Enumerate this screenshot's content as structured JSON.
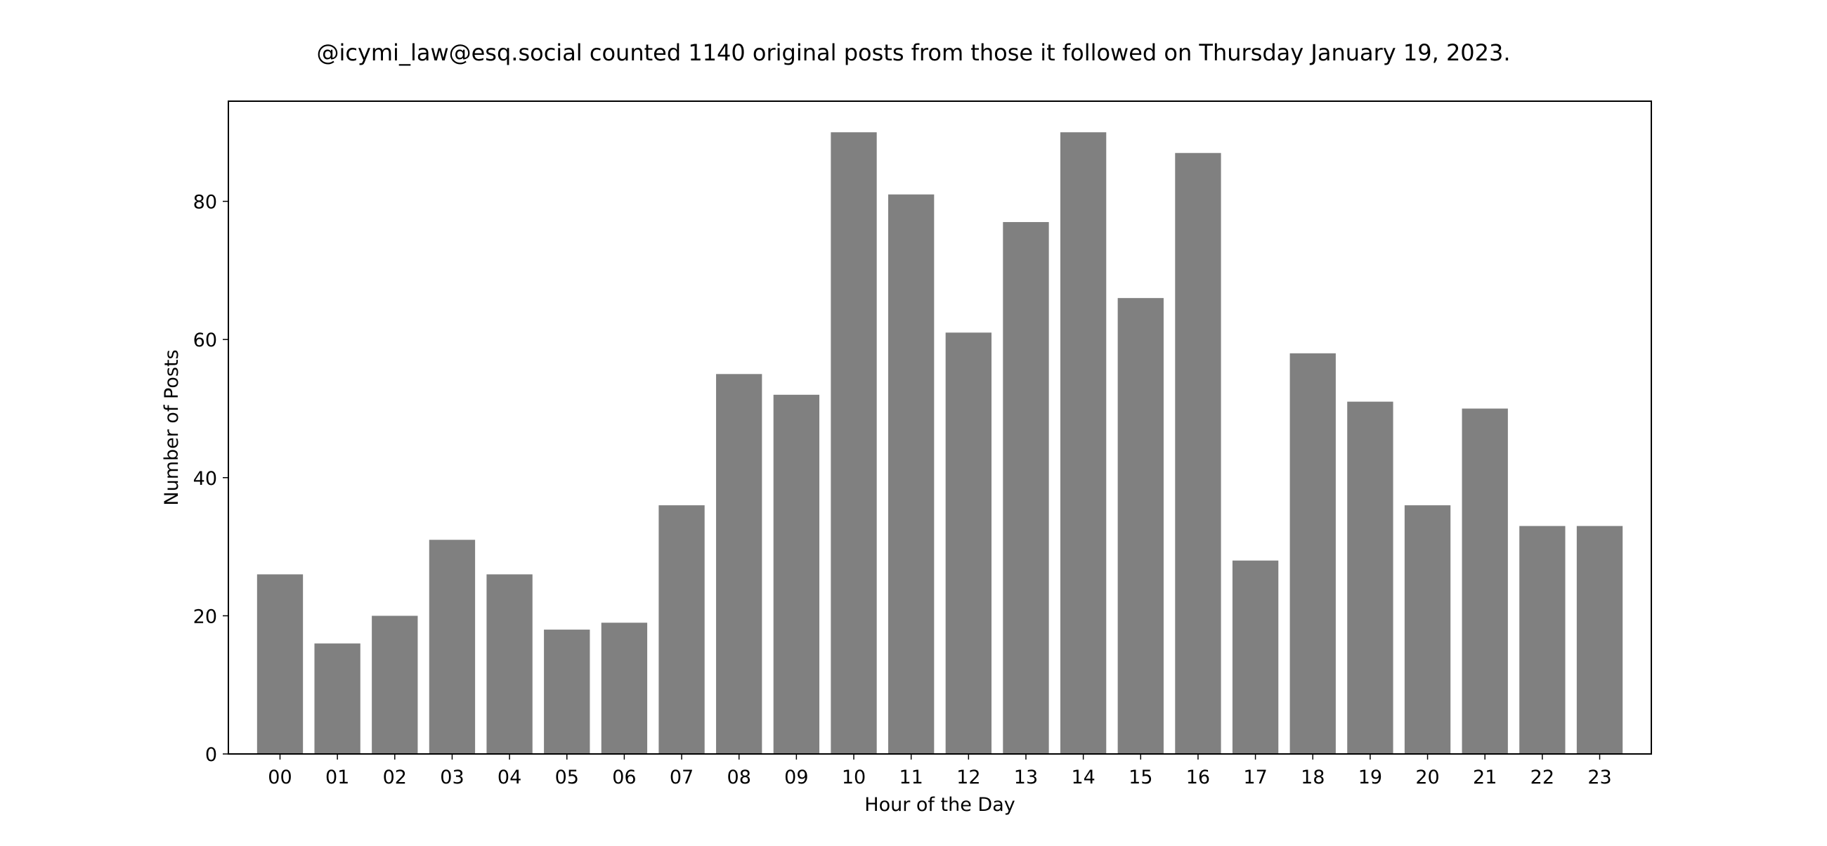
{
  "chart_data": {
    "type": "bar",
    "title": "@icymi_law@esq.social counted 1140 original posts from those it followed on Thursday January 19, 2023.",
    "xlabel": "Hour of the Day",
    "ylabel": "Number of Posts",
    "categories": [
      "00",
      "01",
      "02",
      "03",
      "04",
      "05",
      "06",
      "07",
      "08",
      "09",
      "10",
      "11",
      "12",
      "13",
      "14",
      "15",
      "16",
      "17",
      "18",
      "19",
      "20",
      "21",
      "22",
      "23"
    ],
    "values": [
      26,
      16,
      20,
      31,
      26,
      18,
      19,
      36,
      55,
      52,
      90,
      81,
      61,
      77,
      90,
      66,
      87,
      28,
      58,
      51,
      36,
      50,
      33,
      33
    ],
    "ylim": [
      0,
      94.5
    ],
    "yticks": [
      0,
      20,
      40,
      60,
      80
    ],
    "bar_color": "#808080",
    "grid": false,
    "legend": "none"
  }
}
